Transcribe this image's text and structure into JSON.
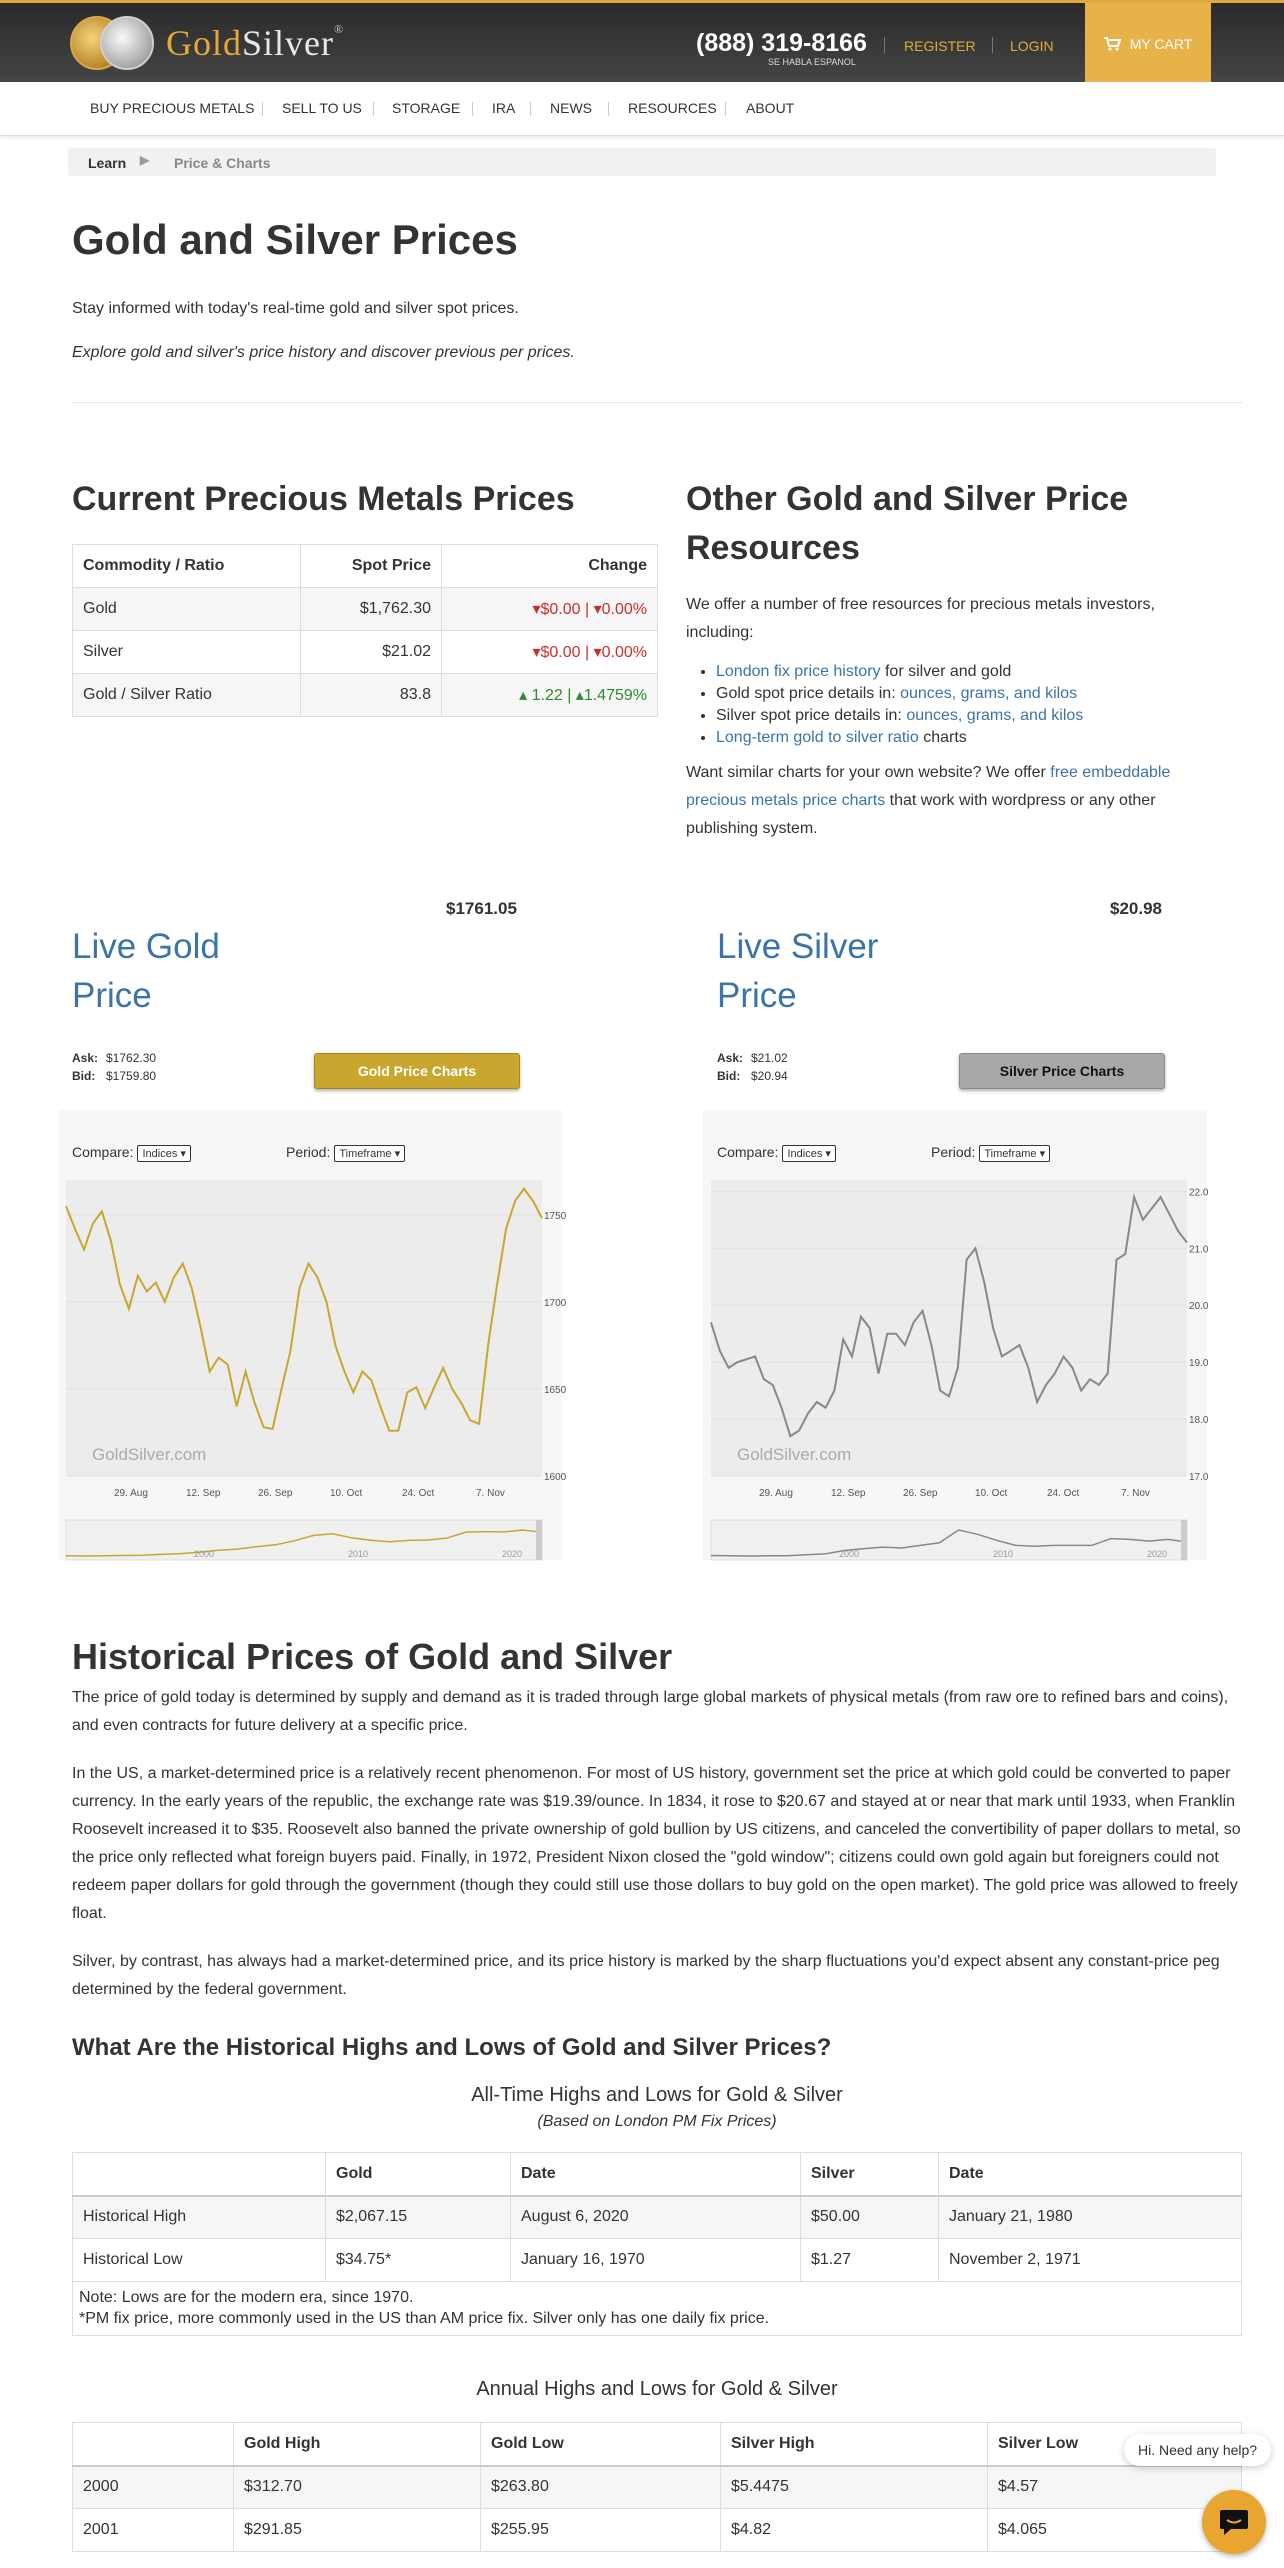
{
  "header": {
    "brand_gold": "Gold",
    "brand_silver": "Silver",
    "trademark": "®",
    "phone": "(888) 319-8166",
    "phone_note": "SE HABLA ESPANOL",
    "register": "REGISTER",
    "login": "LOGIN",
    "cart": "MY CART"
  },
  "nav": [
    "BUY PRECIOUS METALS",
    "SELL TO US",
    "STORAGE",
    "IRA",
    "NEWS",
    "RESOURCES",
    "ABOUT"
  ],
  "breadcrumb": {
    "learn": "Learn",
    "current": "Price & Charts"
  },
  "page": {
    "title": "Gold and Silver Prices",
    "intro": "Stay informed with today's real-time gold and silver spot prices.",
    "intro_italic": "Explore gold and silver's price history and discover previous per prices."
  },
  "current_prices": {
    "heading": "Current Precious Metals Prices",
    "headers": [
      "Commodity / Ratio",
      "Spot Price",
      "Change"
    ],
    "rows": [
      {
        "name": "Gold",
        "spot": "$1,762.30",
        "c1": "$0.00",
        "c2": "0.00%",
        "dir": "down"
      },
      {
        "name": "Silver",
        "spot": "$21.02",
        "c1": "$0.00",
        "c2": "0.00%",
        "dir": "down"
      },
      {
        "name": "Gold / Silver Ratio",
        "spot": "83.8",
        "c1": "1.22",
        "c2": "1.4759%",
        "dir": "up"
      }
    ]
  },
  "resources": {
    "heading": "Other Gold and Silver Price Resources",
    "intro": "We offer a number of free resources for precious metals investors, including:",
    "li1_link": "London fix price history",
    "li1_text": " for silver and gold",
    "li2_text": "Gold spot price details in: ",
    "li2_link": "ounces, grams, and kilos",
    "li3_text": "Silver spot price details in: ",
    "li3_link": "ounces, grams, and kilos",
    "li4_link": "Long-term gold to silver ratio",
    "li4_text": " charts",
    "outro_1": "Want similar charts for your own website? We offer ",
    "outro_link": "free embeddable precious metals price charts",
    "outro_2": " that work with wordpress or any other publishing system."
  },
  "live_gold": {
    "price": "$1761.05",
    "title_1": "Live Gold",
    "title_2": "Price",
    "ask_label": "Ask:",
    "ask": "$1762.30",
    "bid_label": "Bid:",
    "bid": "$1759.80",
    "button": "Gold Price Charts",
    "color": "#c9a72f"
  },
  "live_silver": {
    "price": "$20.98",
    "title_1": "Live Silver",
    "title_2": "Price",
    "ask_label": "Ask:",
    "ask": "$21.02",
    "bid_label": "Bid:",
    "bid": "$20.94",
    "button": "Silver Price Charts",
    "color": "#888888"
  },
  "chart_controls": {
    "compare": "Compare:",
    "indices": "Indices",
    "period": "Period:",
    "timeframe": "Timeframe",
    "watermark": "GoldSilver.com"
  },
  "chart_data": [
    {
      "type": "line",
      "x_ticks": [
        "29. Aug",
        "12. Sep",
        "26. Sep",
        "10. Oct",
        "24. Oct",
        "7. Nov"
      ],
      "y_ticks": [
        1600,
        1650,
        1700,
        1750
      ],
      "ylim": [
        1600,
        1770
      ],
      "values": [
        1755,
        1742,
        1730,
        1745,
        1752,
        1735,
        1710,
        1696,
        1715,
        1706,
        1711,
        1700,
        1714,
        1722,
        1708,
        1685,
        1660,
        1668,
        1664,
        1640,
        1660,
        1642,
        1628,
        1627,
        1650,
        1672,
        1708,
        1722,
        1714,
        1700,
        1675,
        1660,
        1648,
        1660,
        1655,
        1640,
        1626,
        1626,
        1648,
        1651,
        1639,
        1651,
        1662,
        1650,
        1642,
        1632,
        1630,
        1675,
        1710,
        1742,
        1758,
        1765,
        1758,
        1748
      ],
      "nav_ticks": [
        "2000",
        "2010",
        "2020"
      ],
      "nav_values": [
        280,
        270,
        290,
        300,
        320,
        370,
        420,
        500,
        630,
        700,
        850,
        970,
        1220,
        1560,
        1660,
        1410,
        1260,
        1160,
        1250,
        1270,
        1390,
        1770,
        1800,
        1780,
        1900,
        1760
      ]
    },
    {
      "type": "line",
      "x_ticks": [
        "29. Aug",
        "12. Sep",
        "26. Sep",
        "10. Oct",
        "24. Oct",
        "7. Nov"
      ],
      "y_ticks": [
        17.0,
        18.0,
        19.0,
        20.0,
        21.0,
        22.0
      ],
      "ylim": [
        17.0,
        22.2
      ],
      "values": [
        19.7,
        19.2,
        18.9,
        19.0,
        19.05,
        19.1,
        18.7,
        18.6,
        18.2,
        17.7,
        17.8,
        18.1,
        18.3,
        18.2,
        18.5,
        19.4,
        19.1,
        19.8,
        19.6,
        18.8,
        19.5,
        19.5,
        19.3,
        19.7,
        19.9,
        19.3,
        18.5,
        18.4,
        18.9,
        20.8,
        21.0,
        20.4,
        19.6,
        19.1,
        19.2,
        19.3,
        18.9,
        18.3,
        18.6,
        18.8,
        19.1,
        18.9,
        18.5,
        18.7,
        18.6,
        18.8,
        20.8,
        20.9,
        21.9,
        21.5,
        21.7,
        21.9,
        21.6,
        21.3,
        21.1
      ],
      "nav_ticks": [
        "2000",
        "2010",
        "2020"
      ],
      "nav_values": [
        5.2,
        4.9,
        4.6,
        4.8,
        5.0,
        6.0,
        7.0,
        11.0,
        13.0,
        15.0,
        14.0,
        17.0,
        20.0,
        35.0,
        30.0,
        23.0,
        17.0,
        16.0,
        17.0,
        17.0,
        17.0,
        25.0,
        24.0,
        22.0,
        24.0,
        21.0
      ]
    }
  ],
  "historical": {
    "heading": "Historical Prices of Gold and Silver",
    "p1": "The price of gold today is determined by supply and demand as it is traded through large global markets of physical metals (from raw ore to refined bars and coins), and even contracts for future delivery at a specific price.",
    "p2": "In the US, a market-determined price is a relatively recent phenomenon. For most of US history, government set the price at which gold could be converted to paper currency. In the early years of the republic, the exchange rate was $19.39/ounce. In 1834, it rose to $20.67 and stayed at or near that mark until 1933, when Franklin Roosevelt increased it to $35. Roosevelt also banned the private ownership of gold bullion by US citizens, and canceled the convertibility of paper dollars to metal, so the price only reflected what foreign buyers paid. Finally, in 1972, President Nixon closed the \"gold window\"; citizens could own gold again but foreigners could not redeem paper dollars for gold through the government (though they could still use those dollars to buy gold on the open market). The gold price was allowed to freely float.",
    "p3": "Silver, by contrast, has always had a market-determined price, and its price history is marked by the sharp fluctuations you'd expect absent any constant-price peg determined by the federal government.",
    "h3": "What Are the Historical Highs and Lows of Gold and Silver Prices?"
  },
  "alltime": {
    "caption": "All-Time Highs and Lows for Gold & Silver",
    "subcaption": "(Based on London PM Fix Prices)",
    "headers": [
      "",
      "Gold",
      "Date",
      "Silver",
      "Date"
    ],
    "rows": [
      [
        "Historical High",
        "$2,067.15",
        "August 6, 2020",
        "$50.00",
        "January 21, 1980"
      ],
      [
        "Historical Low",
        "$34.75*",
        "January 16, 1970",
        "$1.27",
        "November 2, 1971"
      ]
    ],
    "note1": "Note: Lows are for the modern era, since 1970.",
    "note2": "*PM fix price, more commonly used in the US than AM price fix. Silver only has one daily fix price."
  },
  "annual": {
    "caption": "Annual Highs and Lows for Gold & Silver",
    "headers": [
      "",
      "Gold High",
      "Gold Low",
      "Silver High",
      "Silver Low"
    ],
    "rows": [
      [
        "2000",
        "$312.70",
        "$263.80",
        "$5.4475",
        "$4.57"
      ],
      [
        "2001",
        "$291.85",
        "$255.95",
        "$4.82",
        "$4.065"
      ]
    ]
  },
  "chat": {
    "bubble": "Hi. Need any help?"
  }
}
